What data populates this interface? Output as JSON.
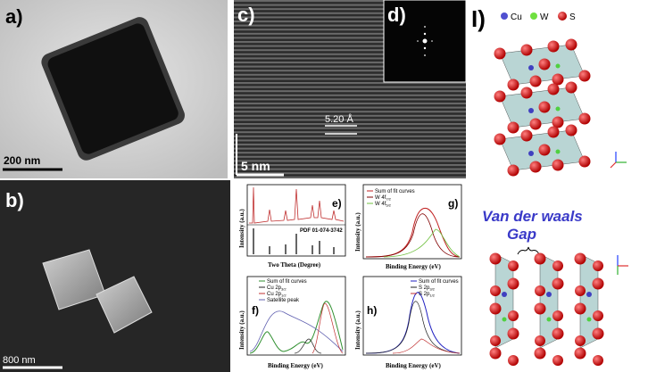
{
  "panels": {
    "a": {
      "label": "a)",
      "scale_bar": "200 nm"
    },
    "b": {
      "label": "b)",
      "scale_bar": "800 nm"
    },
    "c": {
      "label": "c)",
      "scale_bar": "5 nm",
      "spacing": "5.20 Å"
    },
    "d": {
      "label": "d)"
    },
    "e": {
      "label": "e)",
      "y_label": "Intensity (a.u.)",
      "x_label": "Two Theta (Degree)",
      "reference": "PDF 01-074-3742"
    },
    "g": {
      "label": "g)",
      "y_label": "Intensity (a.u.)",
      "x_label": "Binding Energy (eV)",
      "legend": [
        {
          "text": "Sum of fit curves"
        },
        {
          "text": "W 4f",
          "sub": "7/2"
        },
        {
          "text": "W 4f",
          "sub": "5/2"
        }
      ]
    },
    "f": {
      "label": "f)",
      "y_label": "Intensity (a.u.)",
      "x_label": "Binding Energy (eV)",
      "legend": [
        {
          "text": "Sum of fit curves"
        },
        {
          "text": "Cu 2p",
          "sub": "3/2"
        },
        {
          "text": "Cu 2p",
          "sub": "1/2"
        },
        {
          "text": "Satellite peak"
        }
      ]
    },
    "h": {
      "label": "h)",
      "y_label": "Intensity (a.u.)",
      "x_label": "Binding Energy (eV)",
      "legend": [
        {
          "text": "Sum of fit curves"
        },
        {
          "text": "S 2p",
          "sub": "3/2"
        },
        {
          "text": "S 2p",
          "sub": "1/2"
        }
      ]
    },
    "I": {
      "label": "I)",
      "legend": [
        "Cu",
        "W",
        "S"
      ],
      "annotation": [
        "Van der waals",
        "Gap"
      ]
    }
  }
}
